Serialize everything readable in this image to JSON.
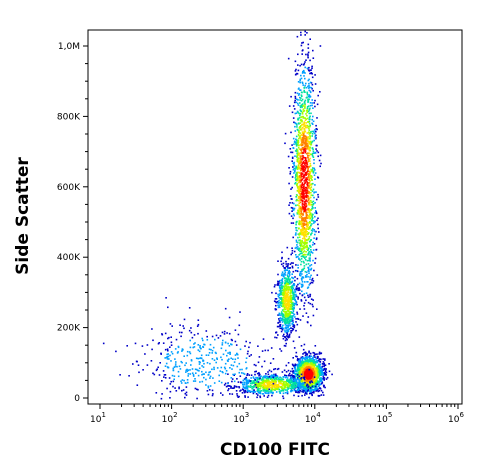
{
  "chart_data": {
    "type": "scatter",
    "subtype": "flow-cytometry-density-dot-plot",
    "title": "",
    "xlabel": "CD100 FITC",
    "ylabel": "Side Scatter",
    "x_scale": "log",
    "xlim": [
      10,
      1000000
    ],
    "ylim": [
      0,
      1050000
    ],
    "x_ticks": [
      {
        "base": "10",
        "exp": "1",
        "value": 10
      },
      {
        "base": "10",
        "exp": "2",
        "value": 100
      },
      {
        "base": "10",
        "exp": "3",
        "value": 1000
      },
      {
        "base": "10",
        "exp": "4",
        "value": 10000
      },
      {
        "base": "10",
        "exp": "5",
        "value": 100000
      },
      {
        "base": "10",
        "exp": "6",
        "value": 1000000
      }
    ],
    "y_ticks": [
      {
        "label": "0",
        "value": 0
      },
      {
        "label": "200K",
        "value": 200000
      },
      {
        "label": "400K",
        "value": 400000
      },
      {
        "label": "600K",
        "value": 600000
      },
      {
        "label": "800K",
        "value": 800000
      },
      {
        "label": "1,0M",
        "value": 1000000
      }
    ],
    "grid": false,
    "legend": "none",
    "color_scale": [
      "#0000c8",
      "#00a0ff",
      "#00e0a0",
      "#a0ff00",
      "#ffe000",
      "#ff8000",
      "#ff0000"
    ],
    "populations": [
      {
        "x_center": 8000,
        "y_center": 70000,
        "x_spread_log": 0.1,
        "y_spread": 25000,
        "density": "high"
      },
      {
        "x_center": 2500,
        "y_center": 40000,
        "x_spread_log": 0.25,
        "y_spread": 15000,
        "density": "medium"
      },
      {
        "x_center": 7000,
        "y_center": 620000,
        "x_spread_log": 0.08,
        "y_spread": 160000,
        "density": "high"
      },
      {
        "x_center": 4000,
        "y_center": 280000,
        "x_spread_log": 0.07,
        "y_spread": 50000,
        "density": "medium"
      },
      {
        "x_center": 300,
        "y_center": 100000,
        "x_spread_log": 0.5,
        "y_spread": 60000,
        "density": "low"
      }
    ]
  }
}
